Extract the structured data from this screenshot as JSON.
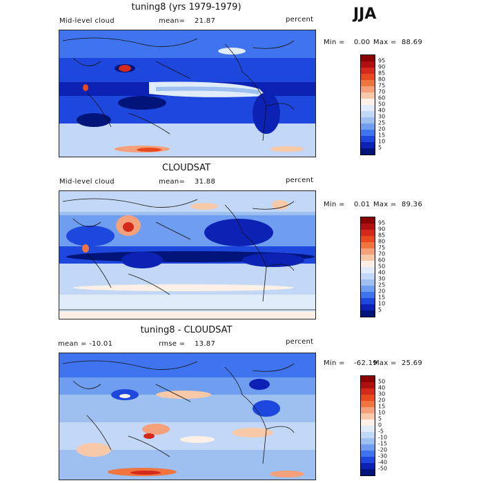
{
  "season": "JJA",
  "panels": [
    {
      "title": "tuning8 (yrs 1979-1979)",
      "left_label": "Mid-level cloud",
      "mean_label": "mean=",
      "mean_value": "21.87",
      "units": "percent",
      "stats": {
        "min_label": "Min =",
        "min": "0.00",
        "max_label": "Max =",
        "max": "88.69"
      },
      "colorbar": {
        "levels": [
          "95",
          "90",
          "85",
          "80",
          "75",
          "70",
          "60",
          "50",
          "40",
          "30",
          "25",
          "20",
          "15",
          "10",
          "5"
        ],
        "colors": [
          "#8b0000",
          "#b01010",
          "#d42a1c",
          "#e8491f",
          "#f0743e",
          "#f4a07a",
          "#f8c9a8",
          "#fdf0e6",
          "#e1ecfa",
          "#c2d8f6",
          "#9dc0f1",
          "#6f9ef0",
          "#3f74ee",
          "#1e48dd",
          "#0b22b5",
          "#00147a"
        ]
      }
    },
    {
      "title": "CLOUDSAT",
      "left_label": "Mid-level cloud",
      "mean_label": "mean=",
      "mean_value": "31.88",
      "units": "percent",
      "stats": {
        "min_label": "Min =",
        "min": "0.01",
        "max_label": "Max =",
        "max": "89.36"
      },
      "colorbar": {
        "levels": [
          "95",
          "90",
          "85",
          "80",
          "75",
          "70",
          "60",
          "50",
          "40",
          "30",
          "25",
          "20",
          "15",
          "10",
          "5"
        ],
        "colors": [
          "#8b0000",
          "#b01010",
          "#d42a1c",
          "#e8491f",
          "#f0743e",
          "#f4a07a",
          "#f8c9a8",
          "#fdf0e6",
          "#e1ecfa",
          "#c2d8f6",
          "#9dc0f1",
          "#6f9ef0",
          "#3f74ee",
          "#1e48dd",
          "#0b22b5",
          "#00147a"
        ]
      }
    },
    {
      "title": "tuning8 - CLOUDSAT",
      "left_label": "mean = -10.01",
      "mean_label": "rmse =",
      "mean_value": "13.87",
      "units": "percent",
      "stats": {
        "min_label": "Min =",
        "min": "-62.19",
        "max_label": "Max =",
        "max": "25.69"
      },
      "colorbar": {
        "levels": [
          "50",
          "40",
          "30",
          "20",
          "15",
          "10",
          "5",
          "0",
          "-5",
          "-10",
          "-15",
          "-20",
          "-30",
          "-40",
          "-50"
        ],
        "colors": [
          "#8b0000",
          "#b01010",
          "#d42a1c",
          "#e8491f",
          "#f0743e",
          "#f4a07a",
          "#f8c9a8",
          "#fdf0e6",
          "#e1ecfa",
          "#c2d8f6",
          "#9dc0f1",
          "#6f9ef0",
          "#3f74ee",
          "#1e48dd",
          "#0b22b5",
          "#00147a"
        ]
      }
    }
  ]
}
